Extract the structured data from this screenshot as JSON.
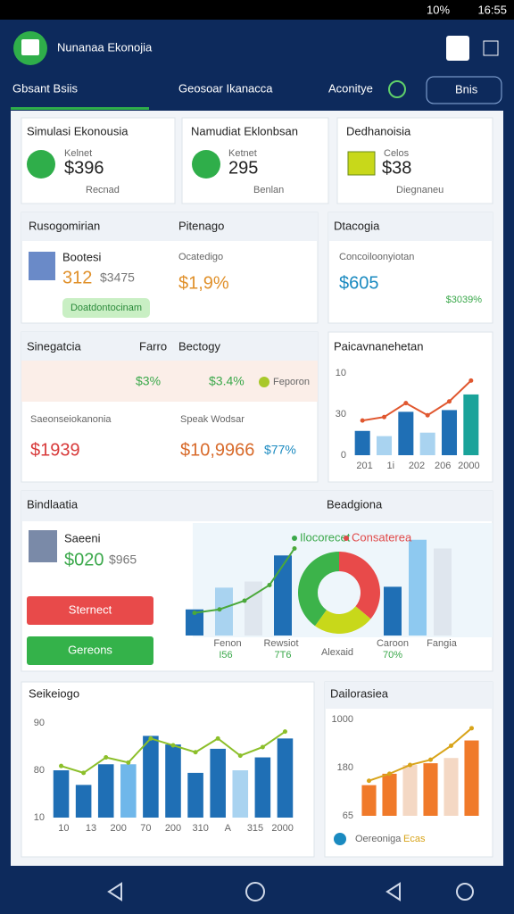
{
  "status_bar": {
    "battery": "10%",
    "time": "16:55"
  },
  "header": {
    "title": "Nunanaa Ekonojia"
  },
  "tabs": [
    "Gbsant Bsiis",
    "Geosoar Ikanacca",
    "Aconitye",
    "Bnis"
  ],
  "summary_cards": [
    {
      "title": "Simulasi Ekonousia",
      "label": "Kelnet",
      "value": "$396",
      "footer": "Recnad"
    },
    {
      "title": "Namudiat Eklonbsan",
      "label": "Ketnet",
      "value": "295",
      "footer": "Benlan"
    },
    {
      "title": "Dedhanoisia",
      "label": "Celos",
      "value": "$38",
      "footer": "Diegnaneu"
    }
  ],
  "profile_panel": {
    "title": "Rusogomirian",
    "name": "Bootesi",
    "value": "312",
    "amount": "$3475",
    "button": "Doatdontocinam"
  },
  "rate_panel": {
    "title": "Pitenago",
    "label": "Ocatedigo",
    "value": "$1,9%"
  },
  "data_panel": {
    "title": "Dtacogia",
    "label": "Concoiloonyiotan",
    "value": "$605",
    "change": "$3039%"
  },
  "strategy_panel": {
    "title": "Sinegatcia",
    "tab": "Farro",
    "title2": "Bectogy",
    "rates": [
      "$3%",
      "$3.4%"
    ],
    "legend": "Feporon",
    "left_label": "Saeonseiokanonia",
    "left_value": "$1939",
    "right_label": "Speak Wodsar",
    "right_value": "$10,9966",
    "right_change": "$77%"
  },
  "trend_chart": {
    "title": "Paicavnanehetan",
    "ylabels": [
      "10",
      "30",
      "0"
    ],
    "xlabels": [
      "201",
      "1i",
      "202",
      "206",
      "2000"
    ],
    "bars": [
      28,
      22,
      50,
      26,
      52,
      70
    ],
    "bar_colors": [
      "#1f6fb5",
      "#a9d3f0",
      "#1f6fb5",
      "#a9d3f0",
      "#1f6fb5",
      "#1aa39a"
    ],
    "line": [
      40,
      44,
      60,
      46,
      62,
      86
    ],
    "line_color": "#e0572f"
  },
  "simulation_panel": {
    "title": "Bindlaatia",
    "title2": "Beadgiona",
    "person": "Saeeni",
    "value": "$020",
    "amount": "$965",
    "buttons": [
      "Sternect",
      "Gereons"
    ],
    "chart": {
      "legend": [
        "Ilocorecet",
        "Consaterea"
      ],
      "legend_colors": [
        "#3aa84a",
        "#e04a4a"
      ],
      "xlabels": [
        "Fenon",
        "Rewsiot",
        "Alexaid",
        "Caroon",
        "Fangia"
      ],
      "values": [
        "I56",
        "7T6",
        "70%"
      ],
      "left_bars": [
        30,
        55,
        62,
        92
      ],
      "left_colors": [
        "#1f6fb5",
        "#a9d3f0",
        "#dfe6ee",
        "#1f6fb5"
      ],
      "right_bars": [
        56,
        110,
        100
      ],
      "right_colors": [
        "#1f6fb5",
        "#8ec9f0",
        "#dfe6ee"
      ],
      "pie": [
        36,
        24,
        40
      ],
      "pie_colors": [
        "#e84a4a",
        "#c8d81a",
        "#3cb34a"
      ],
      "line": [
        26,
        30,
        40,
        58,
        100
      ],
      "line_color": "#4aa83a"
    }
  },
  "market_chart": {
    "title": "Seikeiogo",
    "ylabels": [
      "90",
      "80",
      "10"
    ],
    "xlabels": [
      "10",
      "13",
      "200",
      "70",
      "200",
      "310",
      "A",
      "315",
      "2000"
    ],
    "bars": [
      55,
      38,
      62,
      62,
      95,
      85,
      52,
      80,
      55,
      70,
      92
    ],
    "bar_colors": [
      "#1f6fb5",
      "#1f6fb5",
      "#1f6fb5",
      "#6fb7ea",
      "#1f6fb5",
      "#1f6fb5",
      "#1f6fb5",
      "#1f6fb5",
      "#a9d3f0",
      "#1f6fb5",
      "#1f6fb5"
    ],
    "line": [
      60,
      52,
      70,
      64,
      92,
      84,
      76,
      92,
      72,
      82,
      100
    ],
    "line_color": "#8cbf2a"
  },
  "cost_chart": {
    "title": "Dailorasiea",
    "ylabels": [
      "1000",
      "180",
      "65"
    ],
    "bars": [
      35,
      48,
      58,
      60,
      66,
      86
    ],
    "bar_colors": [
      "#f07a2a",
      "#f07a2a",
      "#f4d8c4",
      "#f07a2a",
      "#f4d8c4",
      "#f07a2a"
    ],
    "line": [
      40,
      48,
      58,
      64,
      80,
      100
    ],
    "line_color": "#d8a41a",
    "legend": [
      "Oereoniga",
      "Ecas"
    ]
  }
}
